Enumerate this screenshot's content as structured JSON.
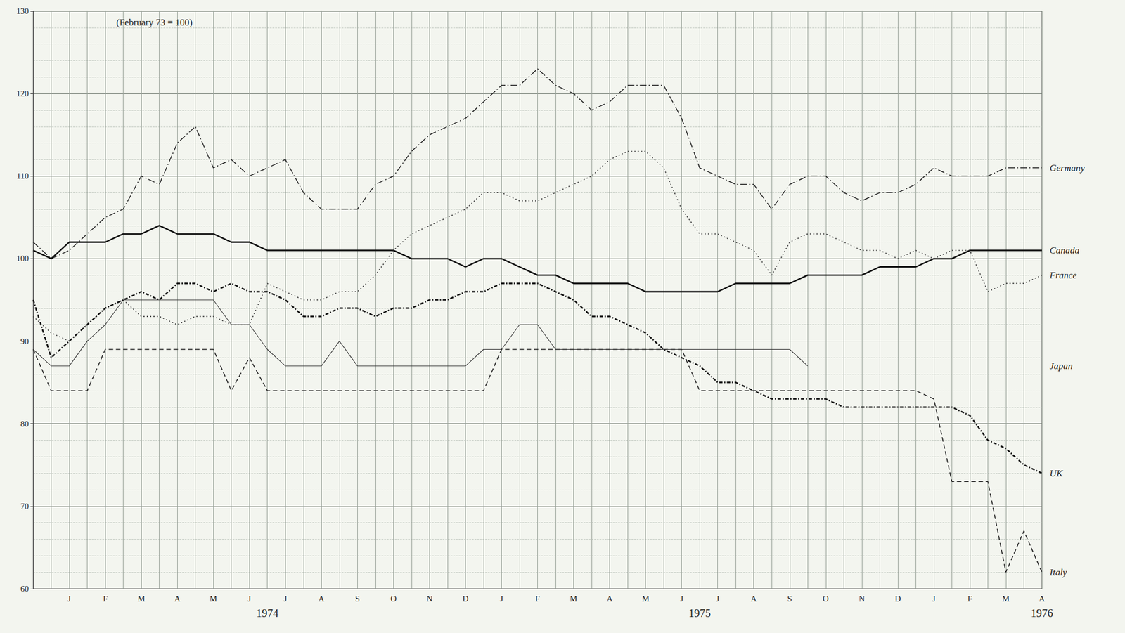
{
  "chart_data": {
    "type": "line",
    "title": "(February 73 = 100)",
    "categories": [
      null,
      null,
      "J",
      null,
      "F",
      null,
      "M",
      null,
      "A",
      null,
      "M",
      null,
      "J",
      null,
      "J",
      null,
      "A",
      null,
      "S",
      null,
      "O",
      null,
      "N",
      null,
      "D",
      null,
      "J",
      null,
      "F",
      null,
      "M",
      null,
      "A",
      null,
      "M",
      null,
      "J",
      null,
      "J",
      null,
      "A",
      null,
      "S",
      null,
      "O",
      null,
      "N",
      null,
      "D",
      null,
      "J",
      null,
      "F",
      null,
      "M",
      null,
      "A"
    ],
    "series": [
      {
        "name": "Germany",
        "color": "#222222",
        "line_style": "dashdot",
        "values": [
          102,
          100,
          101,
          103,
          105,
          106,
          110,
          109,
          114,
          116,
          111,
          112,
          110,
          111,
          112,
          108,
          106,
          106,
          106,
          109,
          110,
          113,
          115,
          116,
          117,
          119,
          121,
          121,
          123,
          121,
          120,
          118,
          119,
          121,
          121,
          121,
          117,
          111,
          110,
          109,
          109,
          106,
          109,
          110,
          110,
          108,
          107,
          108,
          108,
          109,
          111,
          110,
          110,
          110,
          111,
          111,
          111
        ]
      },
      {
        "name": "Canada",
        "color": "#111111",
        "line_style": "solid",
        "values": [
          101,
          100,
          102,
          102,
          102,
          103,
          103,
          104,
          103,
          103,
          103,
          102,
          102,
          101,
          101,
          101,
          101,
          101,
          101,
          101,
          101,
          100,
          100,
          100,
          99,
          100,
          100,
          99,
          98,
          98,
          97,
          97,
          97,
          97,
          96,
          96,
          96,
          96,
          96,
          97,
          97,
          97,
          97,
          98,
          98,
          98,
          98,
          99,
          99,
          99,
          100,
          100,
          101,
          101,
          101,
          101,
          101
        ]
      },
      {
        "name": "France",
        "color": "#333333",
        "line_style": "dotted",
        "values": [
          93,
          91,
          90,
          92,
          94,
          95,
          93,
          93,
          92,
          93,
          93,
          92,
          92,
          97,
          96,
          95,
          95,
          96,
          96,
          98,
          101,
          103,
          104,
          105,
          106,
          108,
          108,
          107,
          107,
          108,
          109,
          110,
          112,
          113,
          113,
          111,
          106,
          103,
          103,
          102,
          101,
          98,
          102,
          103,
          103,
          102,
          101,
          101,
          100,
          101,
          100,
          101,
          101,
          96,
          97,
          97,
          98
        ]
      },
      {
        "name": "Japan",
        "color": "#333333",
        "line_style": "thin",
        "values": [
          89,
          87,
          87,
          90,
          92,
          95,
          95,
          95,
          95,
          95,
          95,
          92,
          92,
          89,
          87,
          87,
          87,
          90,
          87,
          87,
          87,
          87,
          87,
          87,
          87,
          89,
          89,
          92,
          92,
          89,
          89,
          89,
          89,
          89,
          89,
          89,
          89,
          89,
          89,
          89,
          89,
          89,
          89,
          87,
          null,
          null,
          null,
          null,
          null,
          null,
          null,
          null,
          null,
          null,
          null,
          null,
          null
        ]
      },
      {
        "name": "UK",
        "color": "#111111",
        "line_style": "dashdot-thick",
        "values": [
          95,
          88,
          90,
          92,
          94,
          95,
          96,
          95,
          97,
          97,
          96,
          97,
          96,
          96,
          95,
          93,
          93,
          94,
          94,
          93,
          94,
          94,
          95,
          95,
          96,
          96,
          97,
          97,
          97,
          96,
          95,
          93,
          93,
          92,
          91,
          89,
          88,
          87,
          85,
          85,
          84,
          83,
          83,
          83,
          83,
          82,
          82,
          82,
          82,
          82,
          82,
          82,
          81,
          78,
          77,
          75,
          74
        ]
      },
      {
        "name": "Italy",
        "color": "#222222",
        "line_style": "dashed",
        "values": [
          89,
          84,
          84,
          84,
          89,
          89,
          89,
          89,
          89,
          89,
          89,
          84,
          88,
          84,
          84,
          84,
          84,
          84,
          84,
          84,
          84,
          84,
          84,
          84,
          84,
          84,
          89,
          89,
          89,
          89,
          89,
          89,
          89,
          89,
          89,
          89,
          89,
          84,
          84,
          84,
          84,
          84,
          84,
          84,
          84,
          84,
          84,
          84,
          84,
          84,
          83,
          73,
          73,
          73,
          62,
          67,
          62
        ]
      }
    ],
    "annotations": [
      {
        "text": "1974",
        "x": 13
      },
      {
        "text": "1975",
        "x": 37
      },
      {
        "text": "1976",
        "x": 56
      }
    ],
    "ylim": [
      60,
      130
    ],
    "yticks": [
      60,
      70,
      80,
      90,
      100,
      110,
      120,
      130
    ],
    "grid": true
  }
}
